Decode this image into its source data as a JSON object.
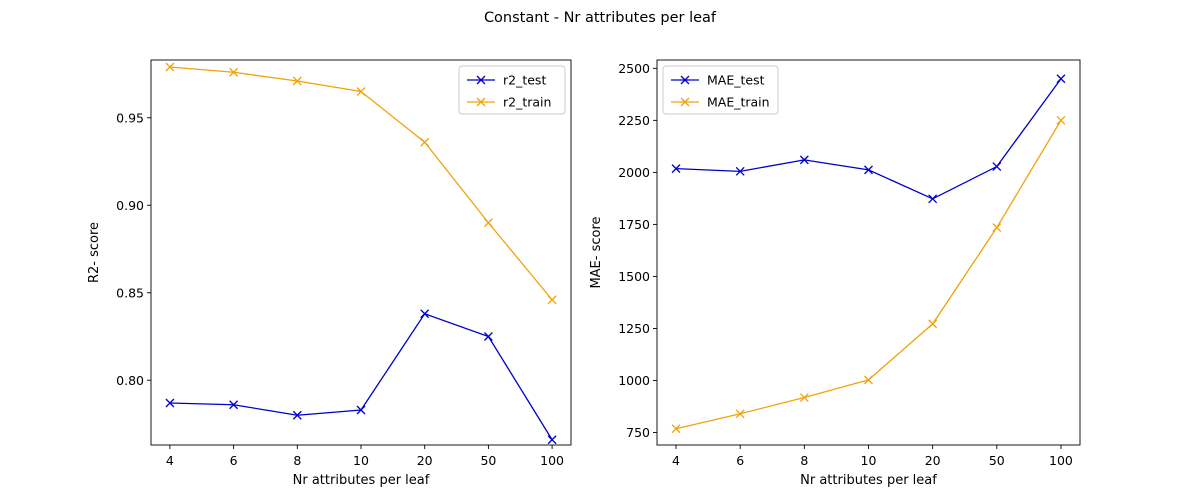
{
  "figure": {
    "title": "Constant - Nr attributes per leaf"
  },
  "chart_data": [
    {
      "type": "line",
      "xlabel": "Nr attributes per leaf",
      "ylabel": "R2- score",
      "categories": [
        "4",
        "6",
        "8",
        "10",
        "20",
        "50",
        "100"
      ],
      "ylim": [
        0.763,
        0.983
      ],
      "yticks": [
        0.8,
        0.85,
        0.9,
        0.95
      ],
      "ytick_labels": [
        "0.80",
        "0.85",
        "0.90",
        "0.95"
      ],
      "grid": false,
      "legend": "top-right",
      "series": [
        {
          "name": "r2_test",
          "color": "#0000cc",
          "marker": "x",
          "values": [
            0.787,
            0.786,
            0.78,
            0.783,
            0.838,
            0.825,
            0.766
          ]
        },
        {
          "name": "r2_train",
          "color": "#f0a30a",
          "marker": "x",
          "values": [
            0.979,
            0.976,
            0.971,
            0.965,
            0.936,
            0.89,
            0.846
          ]
        }
      ]
    },
    {
      "type": "line",
      "xlabel": "Nr attributes per leaf",
      "ylabel": "MAE- score",
      "categories": [
        "4",
        "6",
        "8",
        "10",
        "20",
        "50",
        "100"
      ],
      "ylim": [
        690,
        2540
      ],
      "yticks": [
        750,
        1000,
        1250,
        1500,
        1750,
        2000,
        2250,
        2500
      ],
      "ytick_labels": [
        "750",
        "1000",
        "1250",
        "1500",
        "1750",
        "2000",
        "2250",
        "2500"
      ],
      "grid": false,
      "legend": "top-left",
      "series": [
        {
          "name": "MAE_test",
          "color": "#0000cc",
          "marker": "x",
          "values": [
            2018,
            2005,
            2060,
            2012,
            1873,
            2028,
            2450
          ]
        },
        {
          "name": "MAE_train",
          "color": "#f0a30a",
          "marker": "x",
          "values": [
            768,
            840,
            918,
            1003,
            1272,
            1735,
            2250
          ]
        }
      ]
    }
  ]
}
